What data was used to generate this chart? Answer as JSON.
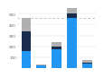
{
  "groups": [
    {
      "blue": 155,
      "dark": 185,
      "gray": 120
    },
    {
      "blue": 22,
      "dark": 4,
      "gray": 3
    },
    {
      "blue": 175,
      "dark": 22,
      "gray": 38
    },
    {
      "blue": 460,
      "dark": 45,
      "gray": 55
    },
    {
      "blue": 42,
      "dark": 8,
      "gray": 25
    }
  ],
  "bar_width": 0.6,
  "group_positions": [
    0,
    1,
    2,
    3,
    4
  ],
  "colors": {
    "blue": "#2196F3",
    "dark": "#1A2C4E",
    "gray": "#B0B0B0"
  },
  "reference_line_y": 460,
  "background_color": "#ffffff",
  "ylim": [
    0,
    550
  ],
  "yticks": [
    100,
    200,
    300,
    400,
    500
  ]
}
